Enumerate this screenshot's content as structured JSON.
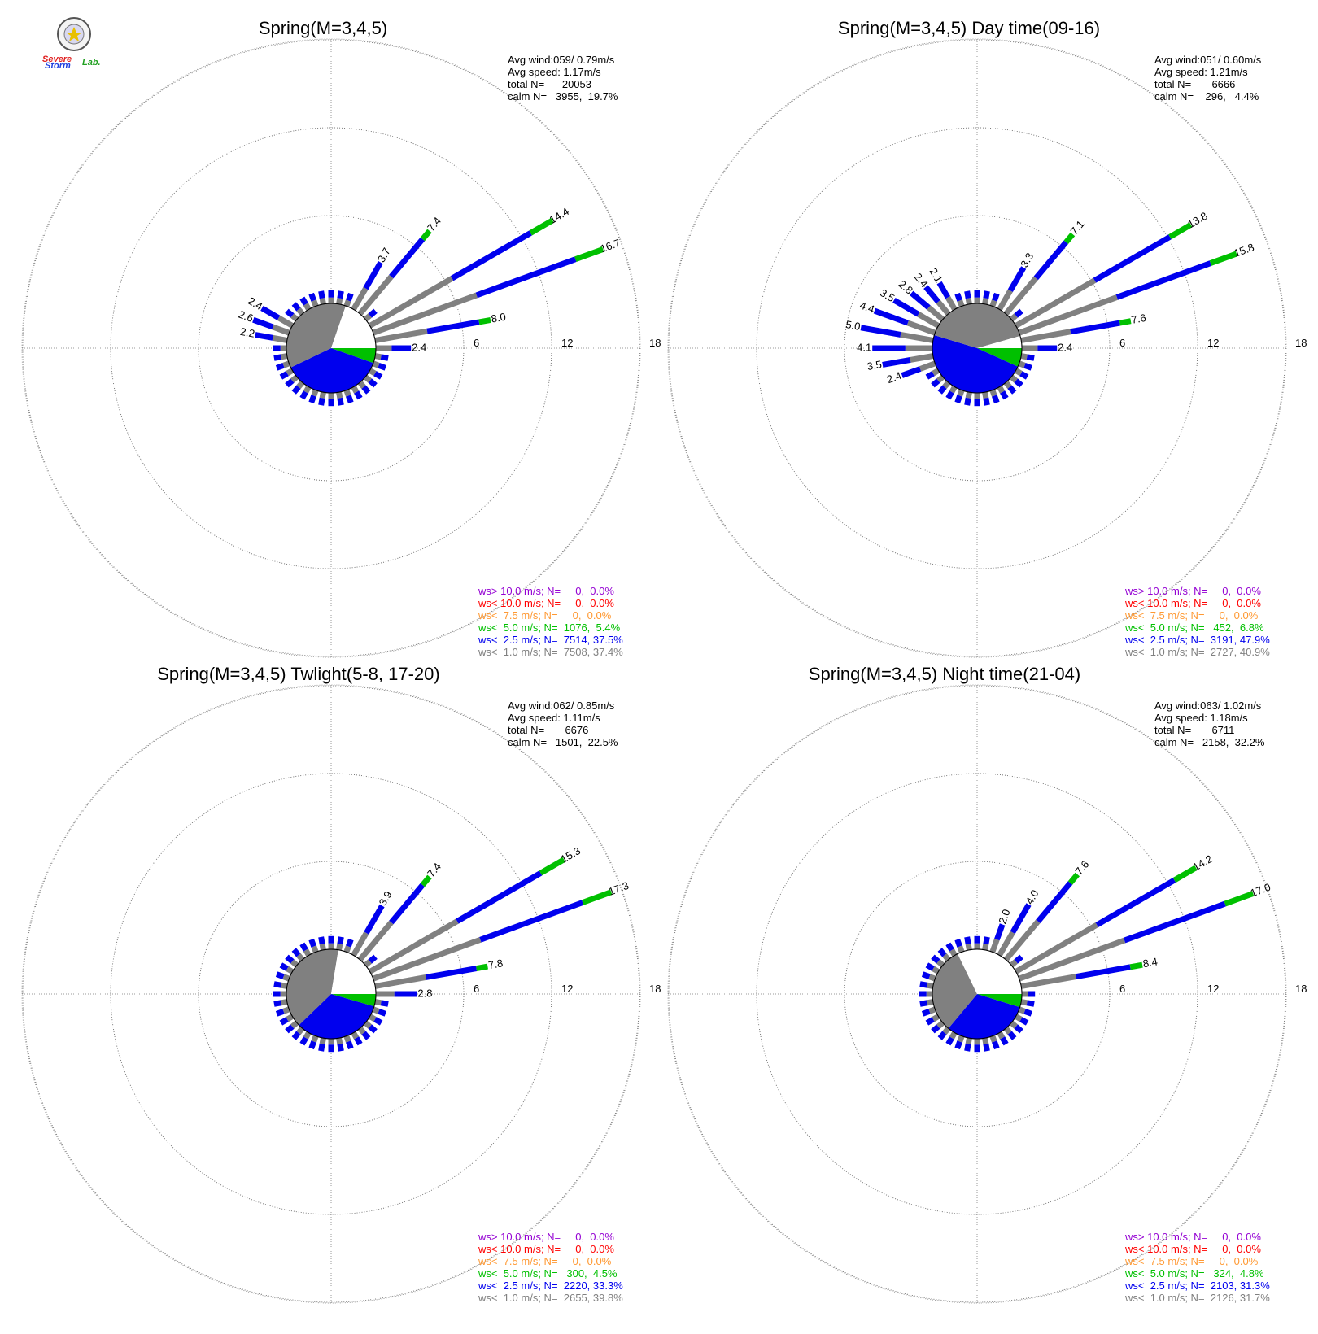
{
  "logo": {
    "text_severe": "Severe",
    "text_storm": "Storm",
    "text_lab": "Lab."
  },
  "colors": {
    "purple": "#9400d3",
    "red": "#ff0000",
    "orange": "#ff9933",
    "green": "#00c000",
    "blue": "#0000ee",
    "gray": "#808080"
  },
  "chart_data": [
    {
      "type": "windrose",
      "title": "Spring(M=3,4,5)",
      "stats": [
        "Avg wind:059/ 0.79m/s",
        "Avg speed: 1.17m/s",
        "total N=      20053",
        "calm N=   3955,  19.7%"
      ],
      "rings": [
        "6",
        "12",
        "18"
      ],
      "rmax": 18,
      "calm_pie": [
        {
          "color": "green",
          "value": 5.4
        },
        {
          "color": "blue",
          "value": 37.5
        },
        {
          "color": "gray",
          "value": 37.4
        },
        {
          "color": "white",
          "value": 19.7
        }
      ],
      "labeled_bars": [
        {
          "dir": 30,
          "value": 3.7,
          "label": "3.7"
        },
        {
          "dir": 40,
          "value": 7.4,
          "label": "7.4"
        },
        {
          "dir": 60,
          "value": 14.4,
          "label": "14.4"
        },
        {
          "dir": 70,
          "value": 16.7,
          "label": "16.7"
        },
        {
          "dir": 80,
          "value": 8.0,
          "label": "8.0"
        },
        {
          "dir": 90,
          "value": 2.4,
          "label": "2.4"
        },
        {
          "dir": 280,
          "value": 2.2,
          "label": "2.2"
        },
        {
          "dir": 290,
          "value": 2.6,
          "label": "2.6"
        },
        {
          "dir": 300,
          "value": 2.4,
          "label": "2.4"
        }
      ],
      "legend": [
        {
          "color": "purple",
          "text": "ws> 10.0 m/s; N=     0,  0.0%"
        },
        {
          "color": "red",
          "text": "ws< 10.0 m/s; N=     0,  0.0%"
        },
        {
          "color": "orange",
          "text": "ws<  7.5 m/s; N=     0,  0.0%"
        },
        {
          "color": "green",
          "text": "ws<  5.0 m/s; N=  1076,  5.4%"
        },
        {
          "color": "blue",
          "text": "ws<  2.5 m/s; N=  7514, 37.5%"
        },
        {
          "color": "gray",
          "text": "ws<  1.0 m/s; N=  7508, 37.4%"
        }
      ]
    },
    {
      "type": "windrose",
      "title": "Spring(M=3,4,5) Day time(09-16)",
      "stats": [
        "Avg wind:051/ 0.60m/s",
        "Avg speed: 1.21m/s",
        "total N=       6666",
        "calm N=    296,   4.4%"
      ],
      "rings": [
        "6",
        "12",
        "18"
      ],
      "rmax": 18,
      "calm_pie": [
        {
          "color": "green",
          "value": 6.8
        },
        {
          "color": "blue",
          "value": 47.9
        },
        {
          "color": "gray",
          "value": 40.9
        },
        {
          "color": "white",
          "value": 4.4
        }
      ],
      "labeled_bars": [
        {
          "dir": 30,
          "value": 3.3,
          "label": "3.3"
        },
        {
          "dir": 40,
          "value": 7.1,
          "label": "7.1"
        },
        {
          "dir": 60,
          "value": 13.8,
          "label": "13.8"
        },
        {
          "dir": 70,
          "value": 15.8,
          "label": "15.8"
        },
        {
          "dir": 80,
          "value": 7.6,
          "label": "7.6"
        },
        {
          "dir": 90,
          "value": 2.4,
          "label": "2.4"
        },
        {
          "dir": 250,
          "value": 2.4,
          "label": "2.4"
        },
        {
          "dir": 260,
          "value": 3.5,
          "label": "3.5"
        },
        {
          "dir": 270,
          "value": 4.1,
          "label": "4.1"
        },
        {
          "dir": 280,
          "value": 5.0,
          "label": "5.0"
        },
        {
          "dir": 290,
          "value": 4.4,
          "label": "4.4"
        },
        {
          "dir": 300,
          "value": 3.5,
          "label": "3.5"
        },
        {
          "dir": 310,
          "value": 2.8,
          "label": "2.8"
        },
        {
          "dir": 320,
          "value": 2.4,
          "label": "2.4"
        },
        {
          "dir": 330,
          "value": 2.1,
          "label": "2.1"
        }
      ],
      "legend": [
        {
          "color": "purple",
          "text": "ws> 10.0 m/s; N=     0,  0.0%"
        },
        {
          "color": "red",
          "text": "ws< 10.0 m/s; N=     0,  0.0%"
        },
        {
          "color": "orange",
          "text": "ws<  7.5 m/s; N=     0,  0.0%"
        },
        {
          "color": "green",
          "text": "ws<  5.0 m/s; N=   452,  6.8%"
        },
        {
          "color": "blue",
          "text": "ws<  2.5 m/s; N=  3191, 47.9%"
        },
        {
          "color": "gray",
          "text": "ws<  1.0 m/s; N=  2727, 40.9%"
        }
      ]
    },
    {
      "type": "windrose",
      "title": "Spring(M=3,4,5) Twlight(5-8, 17-20)",
      "stats": [
        "Avg wind:062/ 0.85m/s",
        "Avg speed: 1.11m/s",
        "total N=       6676",
        "calm N=   1501,  22.5%"
      ],
      "rings": [
        "6",
        "12",
        "18"
      ],
      "rmax": 18,
      "calm_pie": [
        {
          "color": "green",
          "value": 4.5
        },
        {
          "color": "blue",
          "value": 33.3
        },
        {
          "color": "gray",
          "value": 39.8
        },
        {
          "color": "white",
          "value": 22.4
        }
      ],
      "labeled_bars": [
        {
          "dir": 30,
          "value": 3.9,
          "label": "3.9"
        },
        {
          "dir": 40,
          "value": 7.4,
          "label": "7.4"
        },
        {
          "dir": 60,
          "value": 15.3,
          "label": "15.3"
        },
        {
          "dir": 70,
          "value": 17.3,
          "label": "17.3"
        },
        {
          "dir": 80,
          "value": 7.8,
          "label": "7.8"
        },
        {
          "dir": 90,
          "value": 2.8,
          "label": "2.8"
        }
      ],
      "legend": [
        {
          "color": "purple",
          "text": "ws> 10.0 m/s; N=     0,  0.0%"
        },
        {
          "color": "red",
          "text": "ws< 10.0 m/s; N=     0,  0.0%"
        },
        {
          "color": "orange",
          "text": "ws<  7.5 m/s; N=     0,  0.0%"
        },
        {
          "color": "green",
          "text": "ws<  5.0 m/s; N=   300,  4.5%"
        },
        {
          "color": "blue",
          "text": "ws<  2.5 m/s; N=  2220, 33.3%"
        },
        {
          "color": "gray",
          "text": "ws<  1.0 m/s; N=  2655, 39.8%"
        }
      ]
    },
    {
      "type": "windrose",
      "title": "Spring(M=3,4,5) Night time(21-04)",
      "stats": [
        "Avg wind:063/ 1.02m/s",
        "Avg speed: 1.18m/s",
        "total N=       6711",
        "calm N=   2158,  32.2%"
      ],
      "rings": [
        "6",
        "12",
        "18"
      ],
      "rmax": 18,
      "calm_pie": [
        {
          "color": "green",
          "value": 4.8
        },
        {
          "color": "blue",
          "value": 31.3
        },
        {
          "color": "gray",
          "value": 31.7
        },
        {
          "color": "white",
          "value": 32.2
        }
      ],
      "labeled_bars": [
        {
          "dir": 20,
          "value": 2.0,
          "label": "2.0"
        },
        {
          "dir": 30,
          "value": 4.0,
          "label": "4.0"
        },
        {
          "dir": 40,
          "value": 7.6,
          "label": "7.6"
        },
        {
          "dir": 60,
          "value": 14.2,
          "label": "14.2"
        },
        {
          "dir": 70,
          "value": 17.0,
          "label": "17.0"
        },
        {
          "dir": 80,
          "value": 8.4,
          "label": "8.4"
        }
      ],
      "legend": [
        {
          "color": "purple",
          "text": "ws> 10.0 m/s; N=     0,  0.0%"
        },
        {
          "color": "red",
          "text": "ws< 10.0 m/s; N=     0,  0.0%"
        },
        {
          "color": "orange",
          "text": "ws<  7.5 m/s; N=     0,  0.0%"
        },
        {
          "color": "green",
          "text": "ws<  5.0 m/s; N=   324,  4.8%"
        },
        {
          "color": "blue",
          "text": "ws<  2.5 m/s; N=  2103, 31.3%"
        },
        {
          "color": "gray",
          "text": "ws<  1.0 m/s; N=  2126, 31.7%"
        }
      ]
    }
  ]
}
